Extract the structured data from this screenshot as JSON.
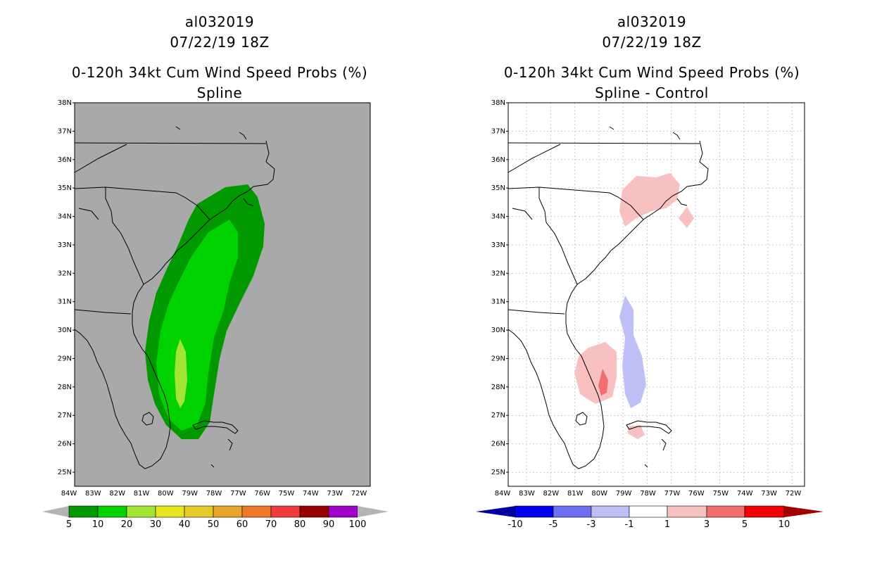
{
  "left_panel": {
    "storm_id": "al032019",
    "datetime": "07/22/19 18Z",
    "product": "0-120h 34kt Cum Wind Speed Probs (%)",
    "subtitle": "Spline",
    "background_color": "#a9a9a9"
  },
  "right_panel": {
    "storm_id": "al032019",
    "datetime": "07/22/19 18Z",
    "product": "0-120h 34kt Cum Wind Speed Probs (%)",
    "subtitle": "Spline - Control",
    "background_color": "#ffffff"
  },
  "lat_labels": [
    "38N",
    "37N",
    "36N",
    "35N",
    "34N",
    "33N",
    "32N",
    "31N",
    "30N",
    "29N",
    "28N",
    "27N",
    "26N",
    "25N"
  ],
  "lon_labels": [
    "84W",
    "83W",
    "82W",
    "81W",
    "80W",
    "79W",
    "78W",
    "77W",
    "76W",
    "75W",
    "74W",
    "73W",
    "72W"
  ],
  "left_colorbar": {
    "labels": [
      "5",
      "10",
      "20",
      "30",
      "40",
      "50",
      "60",
      "70",
      "80",
      "90",
      "100"
    ],
    "colors": [
      "#009900",
      "#00d200",
      "#a0e632",
      "#e6e61e",
      "#e6c828",
      "#e6a528",
      "#ee7a28",
      "#f03c3c",
      "#960000",
      "#a000c8"
    ],
    "end_color": "#b4b4b4"
  },
  "right_colorbar": {
    "labels": [
      "-10",
      "-5",
      "-3",
      "-1",
      "1",
      "3",
      "5",
      "10"
    ],
    "colors": [
      "#0000a0",
      "#0000f0",
      "#6e6ef0",
      "#c0c0f8",
      "#ffffff",
      "#f8c0c0",
      "#f06e6e",
      "#f00000",
      "#a00000"
    ]
  },
  "contours_left": [
    {
      "level": "5-10",
      "color": "#009900"
    },
    {
      "level": "10-20",
      "color": "#00d200"
    },
    {
      "level": "20-30",
      "color": "#a0e632"
    }
  ],
  "contours_right": [
    {
      "level": "1-3",
      "color": "#f8c0c0"
    },
    {
      "level": "3-5",
      "color": "#f06e6e"
    },
    {
      "level": "-3--1",
      "color": "#c0c0f8"
    }
  ]
}
